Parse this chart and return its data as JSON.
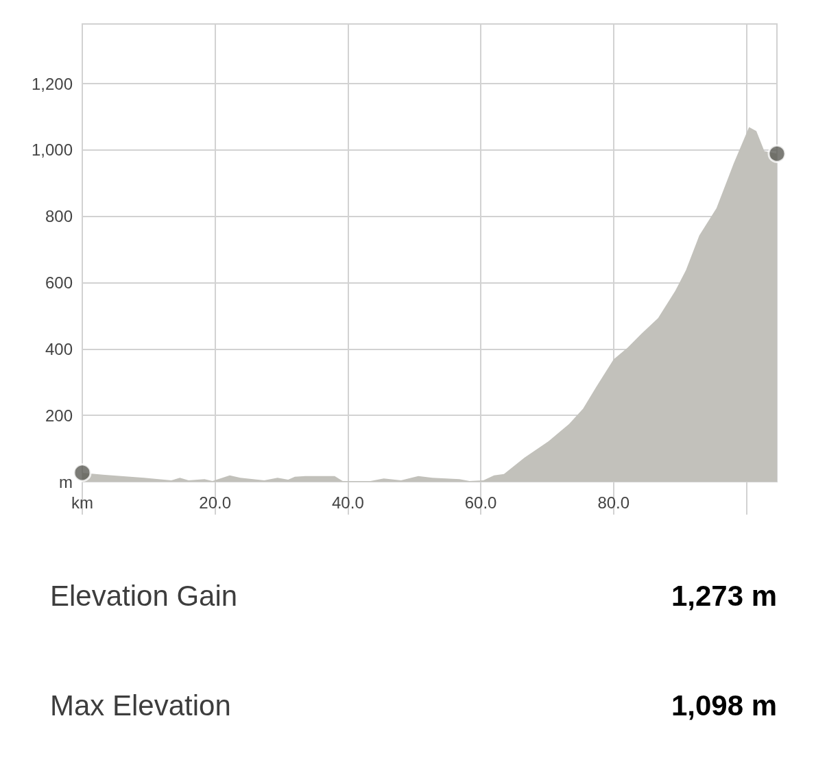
{
  "chart_data": {
    "type": "area",
    "series": [
      {
        "color": "#c2c1bb",
        "x": [
          0,
          3.1,
          9.3,
          13.4,
          14.7,
          16,
          18.4,
          19.6,
          22.2,
          23.8,
          27.4,
          29.4,
          31,
          32,
          33.6,
          38,
          39.2,
          43.4,
          45.4,
          48,
          50.6,
          52.7,
          56.8,
          58.3,
          60.4,
          62,
          63.5,
          66.6,
          70.2,
          73.3,
          75.4,
          77.4,
          80,
          82.1,
          84.2,
          86.7,
          89.3,
          90.9,
          92.9,
          95.5,
          98.1,
          100.4,
          101.5,
          102.7,
          104.6
        ],
        "values": [
          27,
          21,
          12,
          4,
          12,
          4,
          8,
          2,
          19,
          12,
          4,
          12,
          6,
          15,
          17,
          17,
          2,
          2,
          10,
          4,
          17,
          12,
          8,
          2,
          4,
          19,
          23,
          73,
          122,
          174,
          220,
          286,
          369,
          404,
          446,
          493,
          576,
          638,
          742,
          825,
          960,
          1069,
          1057,
          997,
          989
        ]
      },
      {
        "type": "scatter",
        "color": "#5b5b55",
        "x": [
          0,
          104.6
        ],
        "values": [
          27,
          989
        ]
      }
    ],
    "xlim": [
      0,
      104.6
    ],
    "xticks": [
      {
        "value": 0,
        "label": "km"
      },
      {
        "value": 20,
        "label": "20.0"
      },
      {
        "value": 40,
        "label": "40.0"
      },
      {
        "value": 60,
        "label": "60.0"
      },
      {
        "value": 80,
        "label": "80.0"
      },
      {
        "value": 100,
        "label": null
      }
    ],
    "ylim": [
      0,
      1380
    ],
    "yticks": [
      {
        "value": 0,
        "label": "m"
      },
      {
        "value": 200,
        "label": "200"
      },
      {
        "value": 400,
        "label": "400"
      },
      {
        "value": 600,
        "label": "600"
      },
      {
        "value": 800,
        "label": "800"
      },
      {
        "value": 1000,
        "label": "1,000"
      },
      {
        "value": 1200,
        "label": "1,200"
      }
    ],
    "grid": true,
    "annotations": [
      "Elevation Gain",
      "1,273 m",
      "Max Elevation",
      "1,098 m"
    ]
  }
}
